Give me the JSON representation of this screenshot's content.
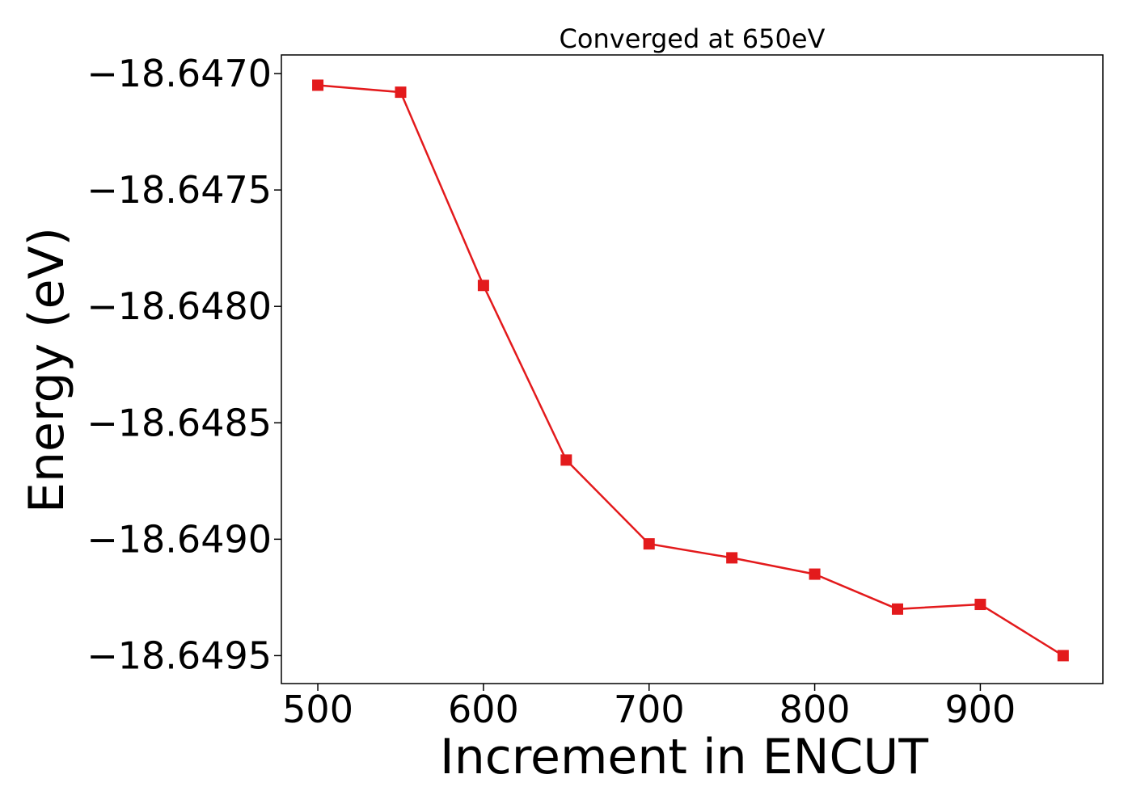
{
  "chart_data": {
    "type": "line",
    "title": "Converged at 650eV",
    "xlabel": "Increment in ENCUT",
    "ylabel": "Energy (eV)",
    "xlim": [
      478,
      974
    ],
    "ylim": [
      -18.64962,
      -18.64692
    ],
    "x_ticks": [
      500,
      600,
      700,
      800,
      900
    ],
    "x_tick_labels": [
      "500",
      "600",
      "700",
      "800",
      "900"
    ],
    "y_ticks": [
      -18.647,
      -18.6475,
      -18.648,
      -18.6485,
      -18.649,
      -18.6495
    ],
    "y_tick_labels": [
      "−18.6470",
      "−18.6475",
      "−18.6480",
      "−18.6485",
      "−18.6490",
      "−18.6495"
    ],
    "grid": false,
    "series": [
      {
        "color": "#e31a1c",
        "marker": "square",
        "x": [
          500,
          550,
          600,
          650,
          700,
          750,
          800,
          850,
          900,
          950
        ],
        "y": [
          -18.64705,
          -18.64708,
          -18.64791,
          -18.64866,
          -18.64902,
          -18.64908,
          -18.64915,
          -18.6493,
          -18.64928,
          -18.6495
        ]
      }
    ]
  }
}
